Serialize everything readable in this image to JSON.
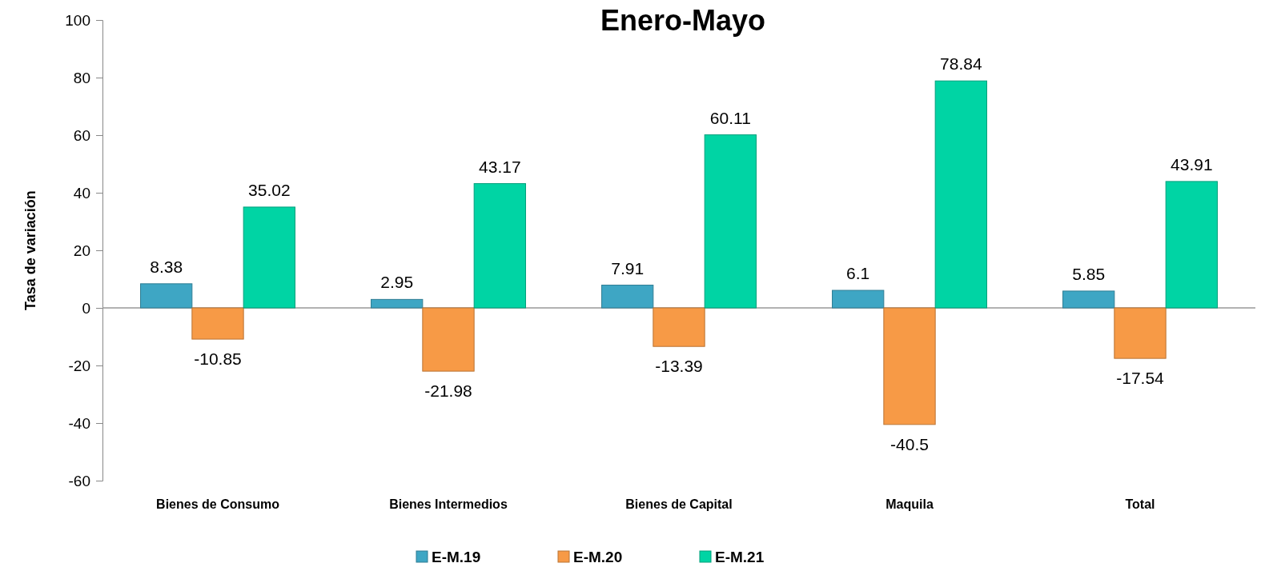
{
  "chart_data": {
    "type": "bar",
    "title": "Enero-Mayo",
    "ylabel": "Tasa de variación",
    "categories": [
      "Bienes de Consumo",
      "Bienes Intermedios",
      "Bienes de Capital",
      "Maquila",
      "Total"
    ],
    "series": [
      {
        "name": "E-M.19",
        "color": "#3ea6c4",
        "values": [
          8.38,
          2.95,
          7.91,
          6.1,
          5.85
        ]
      },
      {
        "name": "E-M.20",
        "color": "#f79a46",
        "values": [
          -10.85,
          -21.98,
          -13.39,
          -40.5,
          -17.54
        ]
      },
      {
        "name": "E-M.21",
        "color": "#00d4a4",
        "values": [
          35.02,
          43.17,
          60.11,
          78.84,
          43.91
        ]
      }
    ],
    "ylim": [
      -60,
      100
    ],
    "yticks": [
      -60,
      -40,
      -20,
      0,
      20,
      40,
      60,
      80,
      100
    ],
    "data_labels": true,
    "legend": "bottom"
  }
}
